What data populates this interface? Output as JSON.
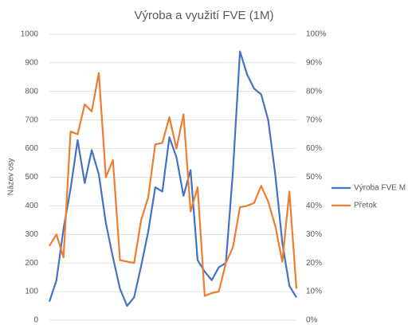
{
  "chart_data": {
    "type": "line",
    "title": "Výroba a využití FVE (1M)",
    "y_label": "Název osy",
    "categories": [
      null,
      null,
      null,
      null,
      null,
      null,
      null,
      null,
      null,
      null,
      null,
      null,
      null,
      null,
      null,
      null,
      null,
      null,
      null,
      null,
      null,
      null,
      null,
      null,
      null,
      null,
      null,
      null,
      null,
      null,
      null,
      null,
      null,
      null,
      null,
      null
    ],
    "series": [
      {
        "name": "Výroba FVE M",
        "color": "#4472c4",
        "values": [
          65,
          140,
          320,
          460,
          630,
          480,
          595,
          510,
          340,
          220,
          110,
          50,
          80,
          190,
          310,
          465,
          450,
          640,
          570,
          435,
          525,
          210,
          170,
          140,
          185,
          200,
          520,
          940,
          860,
          810,
          790,
          700,
          510,
          270,
          120,
          80
        ]
      },
      {
        "name": "Přetok",
        "color": "#ed7d31",
        "axis": "y2",
        "values": [
          26,
          30,
          22,
          66,
          65,
          75.5,
          73,
          86.5,
          50,
          56,
          21,
          20.5,
          20,
          35,
          43,
          61.5,
          62,
          71,
          60,
          72,
          38,
          46.5,
          8.5,
          9.5,
          10,
          20,
          25.5,
          39.5,
          40,
          41,
          47,
          41.5,
          33,
          20.5,
          45,
          11
        ]
      }
    ],
    "ylim": [
      0,
      1000
    ],
    "yticks": [
      0,
      100,
      200,
      300,
      400,
      500,
      600,
      700,
      800,
      900,
      1000
    ],
    "y2lim": [
      0,
      100
    ],
    "y2ticks": [
      {
        "value": 0,
        "label": "0%"
      },
      {
        "value": 10,
        "label": "10%"
      },
      {
        "value": 20,
        "label": "20%"
      },
      {
        "value": 30,
        "label": "30%"
      },
      {
        "value": 40,
        "label": "40%"
      },
      {
        "value": 50,
        "label": "50%"
      },
      {
        "value": 60,
        "label": "60%"
      },
      {
        "value": 70,
        "label": "70%"
      },
      {
        "value": 80,
        "label": "80%"
      },
      {
        "value": 90,
        "label": "90%"
      },
      {
        "value": 100,
        "label": "100%"
      }
    ],
    "grid": true,
    "legend": "right"
  }
}
